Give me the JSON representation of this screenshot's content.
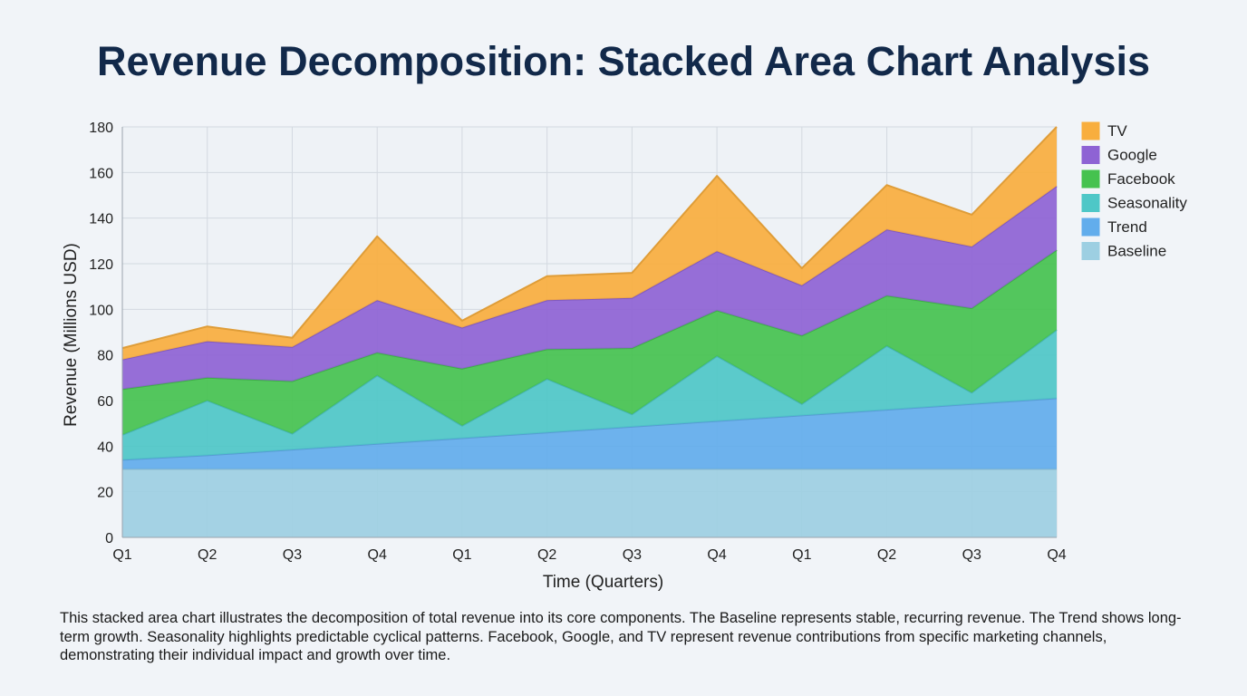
{
  "caption": "This stacked area chart illustrates the decomposition of total revenue into its core components. The Baseline represents stable, recurring revenue. The Trend shows long-term growth. Seasonality highlights predictable cyclical patterns. Facebook, Google, and TV represent revenue contributions from specific marketing channels, demonstrating their individual impact and growth over time.",
  "chart_data": {
    "type": "area",
    "stacked": true,
    "title": "Revenue Decomposition: Stacked Area Chart Analysis",
    "xlabel": "Time (Quarters)",
    "ylabel": "Revenue (Millions USD)",
    "ylim": [
      0,
      180
    ],
    "yticks": [
      0,
      20,
      40,
      60,
      80,
      100,
      120,
      140,
      160,
      180
    ],
    "grid": true,
    "legend_position": "right",
    "categories": [
      "Q1",
      "Q2",
      "Q3",
      "Q4",
      "Q1",
      "Q2",
      "Q3",
      "Q4",
      "Q1",
      "Q2",
      "Q3",
      "Q4"
    ],
    "series": [
      {
        "name": "Baseline",
        "color": "#9dcfe2",
        "values": [
          30,
          30,
          30,
          30,
          30,
          30,
          30,
          30,
          30,
          30,
          30,
          30
        ]
      },
      {
        "name": "Trend",
        "color": "#62adec",
        "values": [
          4,
          6,
          8.5,
          11,
          13.5,
          16,
          18.5,
          21,
          23.5,
          26,
          28.5,
          31
        ]
      },
      {
        "name": "Seasonality",
        "color": "#4ec7c7",
        "values": [
          11,
          24,
          7,
          30,
          5.5,
          23.5,
          5.5,
          28.5,
          5,
          28,
          5,
          30
        ]
      },
      {
        "name": "Facebook",
        "color": "#45c24f",
        "values": [
          20,
          10,
          23,
          10,
          25,
          13,
          29,
          20,
          30,
          22,
          37,
          35
        ]
      },
      {
        "name": "Google",
        "color": "#8e63d4",
        "values": [
          13,
          16,
          15,
          23,
          18,
          21.5,
          22,
          26,
          22,
          29,
          27,
          28
        ]
      },
      {
        "name": "TV",
        "color": "#f8ae3e",
        "values": [
          5,
          6.5,
          4,
          28,
          3,
          10.5,
          11,
          33,
          7.5,
          19.5,
          14,
          26
        ]
      }
    ],
    "legend_order": [
      "TV",
      "Google",
      "Facebook",
      "Seasonality",
      "Trend",
      "Baseline"
    ]
  }
}
